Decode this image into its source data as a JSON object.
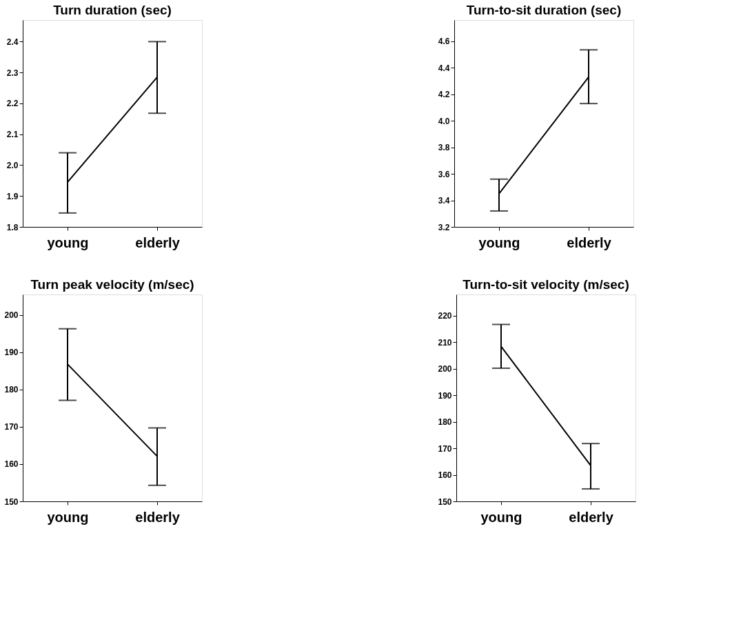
{
  "chart_data": [
    {
      "type": "line",
      "title": "Turn duration  (sec)",
      "categories": [
        "young",
        "elderly"
      ],
      "values": [
        1.945,
        2.285
      ],
      "errors": [
        [
          1.845,
          2.04
        ],
        [
          2.168,
          2.4
        ]
      ],
      "color": "#000000",
      "ylim": [
        1.8,
        2.47
      ],
      "yticks": [
        1.8,
        1.9,
        {
          "value": 2,
          "label": "2.0"
        },
        2.1,
        2.2,
        2.3,
        2.4
      ],
      "grid": false,
      "line_style": "solid"
    },
    {
      "type": "line",
      "title": "Turn-to-sit  duration  (sec)",
      "categories": [
        "young",
        "elderly"
      ],
      "values": [
        3.45,
        4.33
      ],
      "errors": [
        [
          3.32,
          3.56
        ],
        [
          4.13,
          4.535
        ]
      ],
      "color": "#000000",
      "ylim": [
        3.2,
        4.76
      ],
      "yticks": [
        3.2,
        3.4,
        3.6,
        3.8,
        {
          "value": 4,
          "label": "4.0"
        },
        4.2,
        4.4,
        4.6
      ],
      "grid": false,
      "line_style": "solid"
    },
    {
      "type": "line",
      "title": "Turn  peak  velocity  (m/sec)",
      "categories": [
        "young",
        "elderly"
      ],
      "values": [
        186.8,
        162.1
      ],
      "errors": [
        [
          177.1,
          196.3
        ],
        [
          154.3,
          169.7
        ]
      ],
      "color": "#000000",
      "ylim": [
        150,
        205.5
      ],
      "yticks": [
        150,
        160,
        170,
        180,
        190,
        200
      ],
      "grid": false,
      "line_style": "solid"
    },
    {
      "type": "line",
      "title": "Turn-to-sit  velocity  (m/sec)",
      "categories": [
        "young",
        "elderly"
      ],
      "values": [
        208.4,
        163.5
      ],
      "errors": [
        [
          200.2,
          216.7
        ],
        [
          154.7,
          171.8
        ]
      ],
      "color": "#000000",
      "ylim": [
        150,
        228
      ],
      "yticks": [
        150,
        160,
        170,
        180,
        190,
        200,
        210,
        220
      ],
      "grid": false,
      "line_style": "solid"
    }
  ]
}
